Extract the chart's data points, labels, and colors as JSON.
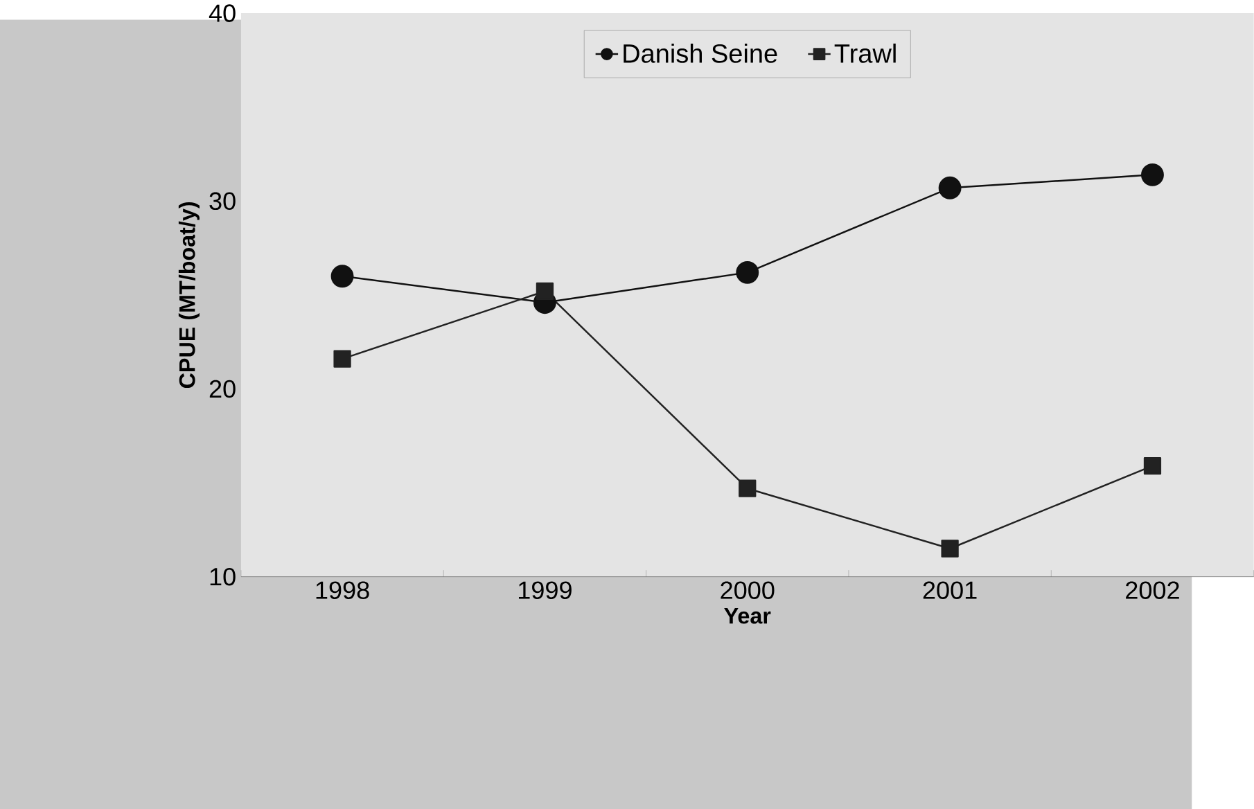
{
  "chart_data": {
    "type": "line",
    "xlabel": "Year",
    "ylabel": "CPUE (MT/boat/y)",
    "categories": [
      "1998",
      "1999",
      "2000",
      "2001",
      "2002"
    ],
    "series": [
      {
        "name": "Danish Seine",
        "color": "#111111",
        "marker": "circle",
        "values": [
          26.0,
          24.6,
          26.2,
          30.7,
          31.4
        ]
      },
      {
        "name": "Trawl",
        "color": "#222222",
        "marker": "square",
        "values": [
          21.6,
          25.2,
          14.7,
          11.5,
          15.9
        ]
      }
    ],
    "ylim": [
      10,
      40
    ],
    "yticks": [
      10,
      20,
      30,
      40
    ],
    "grid": false,
    "legend": "top",
    "line_style": "solid"
  }
}
